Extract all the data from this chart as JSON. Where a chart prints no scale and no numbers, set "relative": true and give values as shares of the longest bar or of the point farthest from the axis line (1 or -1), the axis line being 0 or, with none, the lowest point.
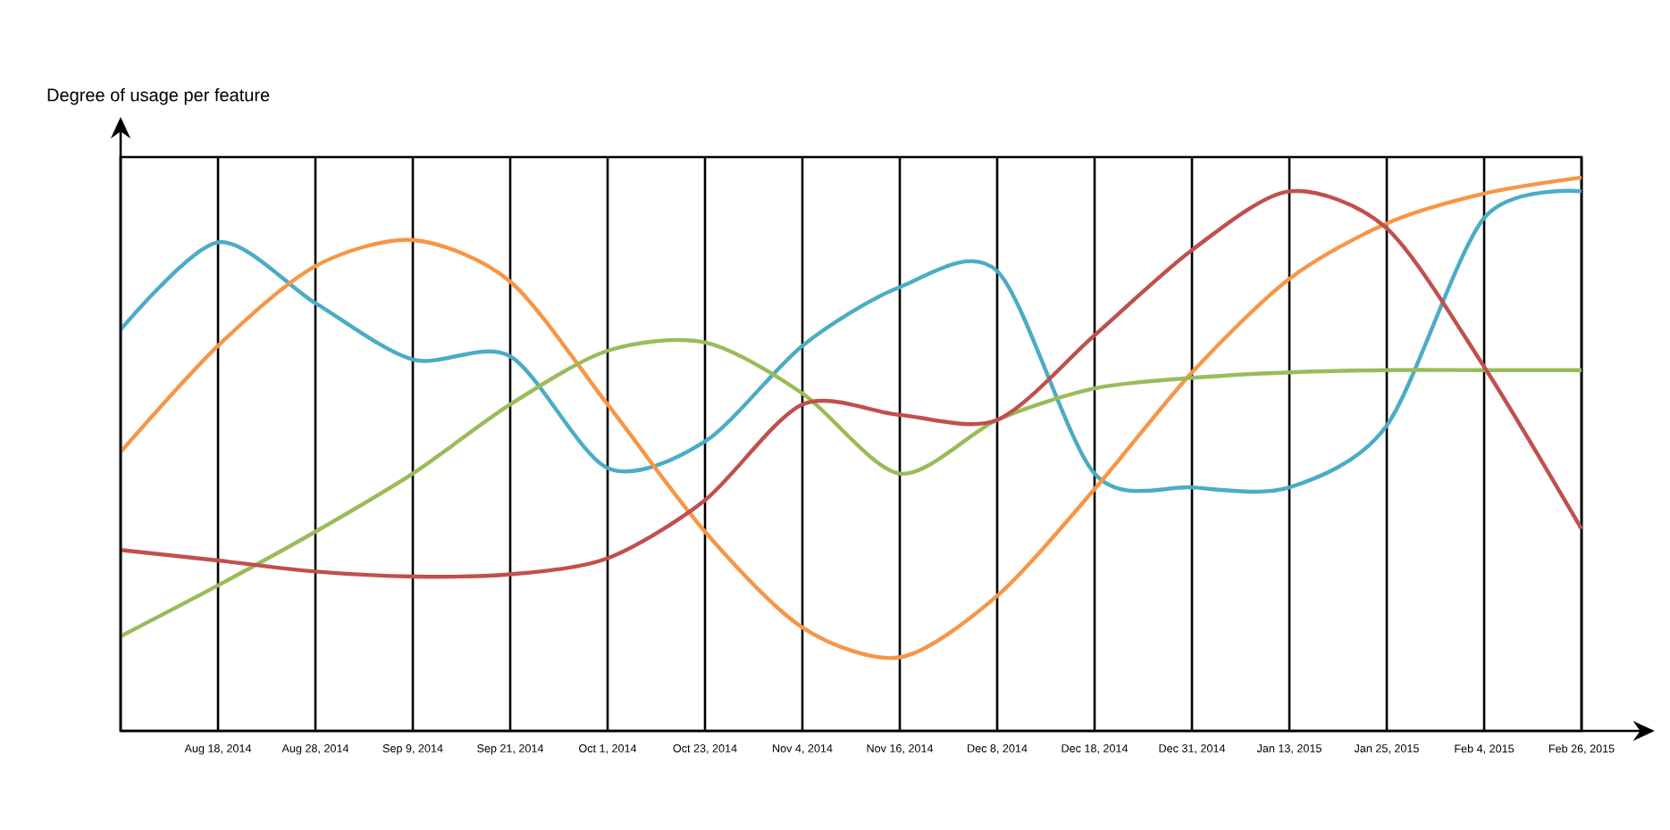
{
  "chart_data": {
    "type": "line",
    "relative": true,
    "ylabel": "Degree of usage per feature",
    "categories": [
      null,
      "Aug 18, 2014",
      "Aug 28, 2014",
      "Sep 9, 2014",
      "Sep 21, 2014",
      "Oct 1, 2014",
      "Oct 23, 2014",
      "Nov 4, 2014",
      "Nov 16, 2014",
      "Dec 8, 2014",
      "Dec 18, 2014",
      "Dec 31, 2014",
      "Jan 13, 2015",
      "Jan 25, 2015",
      "Feb 4, 2015",
      "Feb 26, 2015"
    ],
    "series": [
      {
        "color": "#4bacc6",
        "values": [
          0.725,
          0.883,
          0.773,
          0.671,
          0.677,
          0.475,
          0.523,
          0.696,
          0.802,
          0.831,
          0.465,
          0.44,
          0.44,
          0.552,
          0.927,
          0.975
        ]
      },
      {
        "color": "#f79646",
        "values": [
          0.504,
          0.696,
          0.84,
          0.887,
          0.812,
          0.59,
          0.36,
          0.187,
          0.133,
          0.244,
          0.437,
          0.648,
          0.817,
          0.917,
          0.971,
          1.0
        ]
      },
      {
        "color": "#9bbb59",
        "values": [
          0.171,
          0.263,
          0.36,
          0.465,
          0.59,
          0.687,
          0.702,
          0.61,
          0.465,
          0.562,
          0.619,
          0.638,
          0.648,
          0.652,
          0.652,
          0.652
        ]
      },
      {
        "color": "#c0504d",
        "values": [
          0.327,
          0.308,
          0.288,
          0.279,
          0.283,
          0.312,
          0.417,
          0.59,
          0.571,
          0.562,
          0.715,
          0.869,
          0.975,
          0.908,
          0.658,
          0.365
        ]
      }
    ],
    "grid": "x",
    "marker": "none",
    "line_style": "solid"
  }
}
